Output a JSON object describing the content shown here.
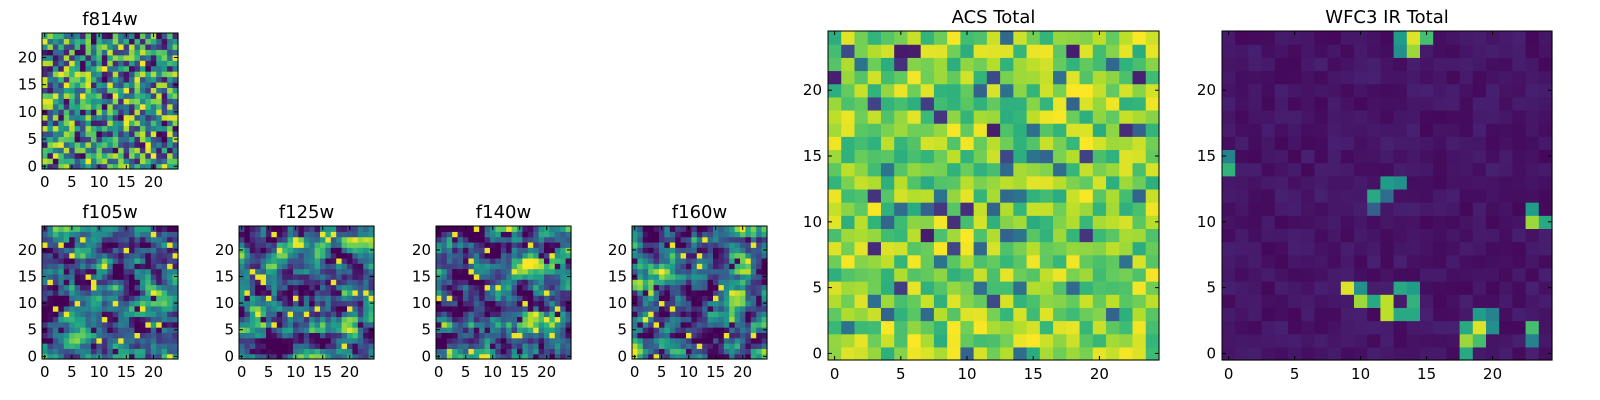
{
  "chart_data": [
    {
      "type": "heatmap",
      "title": "f814w",
      "grid_size": 25,
      "xlim": [
        -0.5,
        24.5
      ],
      "ylim": [
        -0.5,
        24.5
      ],
      "xticks": [
        0,
        5,
        10,
        15,
        20
      ],
      "yticks": [
        0,
        5,
        10,
        15,
        20
      ],
      "xtick_labels": [
        "0",
        "5",
        "10",
        "15",
        "20"
      ],
      "ytick_labels": [
        "0",
        "5",
        "10",
        "15",
        "20"
      ],
      "colormap": "viridis",
      "pattern": "noise",
      "seed": 814
    },
    {
      "type": "heatmap",
      "title": "f105w",
      "grid_size": 25,
      "xlim": [
        -0.5,
        24.5
      ],
      "ylim": [
        -0.5,
        24.5
      ],
      "xticks": [
        0,
        5,
        10,
        15,
        20
      ],
      "yticks": [
        0,
        5,
        10,
        15,
        20
      ],
      "xtick_labels": [
        "0",
        "5",
        "10",
        "15",
        "20"
      ],
      "ytick_labels": [
        "0",
        "5",
        "10",
        "15",
        "20"
      ],
      "colormap": "viridis",
      "pattern": "smooth",
      "seed": 105
    },
    {
      "type": "heatmap",
      "title": "f125w",
      "grid_size": 25,
      "xlim": [
        -0.5,
        24.5
      ],
      "ylim": [
        -0.5,
        24.5
      ],
      "xticks": [
        0,
        5,
        10,
        15,
        20
      ],
      "yticks": [
        0,
        5,
        10,
        15,
        20
      ],
      "xtick_labels": [
        "0",
        "5",
        "10",
        "15",
        "20"
      ],
      "ytick_labels": [
        "0",
        "5",
        "10",
        "15",
        "20"
      ],
      "colormap": "viridis",
      "pattern": "smooth",
      "seed": 125
    },
    {
      "type": "heatmap",
      "title": "f140w",
      "grid_size": 25,
      "xlim": [
        -0.5,
        24.5
      ],
      "ylim": [
        -0.5,
        24.5
      ],
      "xticks": [
        0,
        5,
        10,
        15,
        20
      ],
      "yticks": [
        0,
        5,
        10,
        15,
        20
      ],
      "xtick_labels": [
        "0",
        "5",
        "10",
        "15",
        "20"
      ],
      "ytick_labels": [
        "0",
        "5",
        "10",
        "15",
        "20"
      ],
      "colormap": "viridis",
      "pattern": "smooth",
      "seed": 140
    },
    {
      "type": "heatmap",
      "title": "f160w",
      "grid_size": 25,
      "xlim": [
        -0.5,
        24.5
      ],
      "ylim": [
        -0.5,
        24.5
      ],
      "xticks": [
        0,
        5,
        10,
        15,
        20
      ],
      "yticks": [
        0,
        5,
        10,
        15,
        20
      ],
      "xtick_labels": [
        "0",
        "5",
        "10",
        "15",
        "20"
      ],
      "ytick_labels": [
        "0",
        "5",
        "10",
        "15",
        "20"
      ],
      "colormap": "viridis",
      "pattern": "smooth",
      "seed": 160
    },
    {
      "type": "heatmap",
      "title": "ACS Total",
      "grid_size": 25,
      "xlim": [
        -0.5,
        24.5
      ],
      "ylim": [
        -0.5,
        24.5
      ],
      "xticks": [
        0,
        5,
        10,
        15,
        20
      ],
      "yticks": [
        0,
        5,
        10,
        15,
        20
      ],
      "xtick_labels": [
        "0",
        "5",
        "10",
        "15",
        "20"
      ],
      "ytick_labels": [
        "0",
        "5",
        "10",
        "15",
        "20"
      ],
      "colormap": "viridis",
      "pattern": "bright_noise",
      "seed": 999
    },
    {
      "type": "heatmap",
      "title": "WFC3 IR Total",
      "grid_size": 25,
      "xlim": [
        -0.5,
        24.5
      ],
      "ylim": [
        -0.5,
        24.5
      ],
      "xticks": [
        0,
        5,
        10,
        15,
        20
      ],
      "yticks": [
        0,
        5,
        10,
        15,
        20
      ],
      "xtick_labels": [
        "0",
        "5",
        "10",
        "15",
        "20"
      ],
      "ytick_labels": [
        "0",
        "5",
        "10",
        "15",
        "20"
      ],
      "colormap": "viridis",
      "pattern": "sparse",
      "seed": 777,
      "bright_cells": [
        [
          13,
          24,
          0.55
        ],
        [
          14,
          24,
          0.95
        ],
        [
          15,
          24,
          0.7
        ],
        [
          13,
          23,
          0.5
        ],
        [
          14,
          23,
          0.85
        ],
        [
          0,
          15,
          0.45
        ],
        [
          0,
          14,
          0.65
        ],
        [
          12,
          13,
          0.55
        ],
        [
          13,
          13,
          0.5
        ],
        [
          11,
          12,
          0.6
        ],
        [
          12,
          12,
          0.35
        ],
        [
          11,
          11,
          0.3
        ],
        [
          23,
          11,
          0.55
        ],
        [
          23,
          10,
          0.85
        ],
        [
          24,
          10,
          0.6
        ],
        [
          9,
          5,
          0.95
        ],
        [
          10,
          5,
          0.5
        ],
        [
          13,
          5,
          0.6
        ],
        [
          14,
          5,
          0.55
        ],
        [
          10,
          4,
          0.85
        ],
        [
          11,
          4,
          0.6
        ],
        [
          12,
          4,
          0.9
        ],
        [
          14,
          4,
          0.65
        ],
        [
          12,
          3,
          0.9
        ],
        [
          13,
          3,
          0.6
        ],
        [
          14,
          3,
          0.6
        ],
        [
          19,
          3,
          0.55
        ],
        [
          20,
          3,
          0.45
        ],
        [
          18,
          2,
          0.6
        ],
        [
          19,
          2,
          0.95
        ],
        [
          20,
          2,
          0.5
        ],
        [
          23,
          2,
          0.7
        ],
        [
          18,
          1,
          0.85
        ],
        [
          19,
          1,
          0.7
        ],
        [
          23,
          1,
          0.45
        ],
        [
          18,
          0,
          0.6
        ]
      ]
    }
  ]
}
